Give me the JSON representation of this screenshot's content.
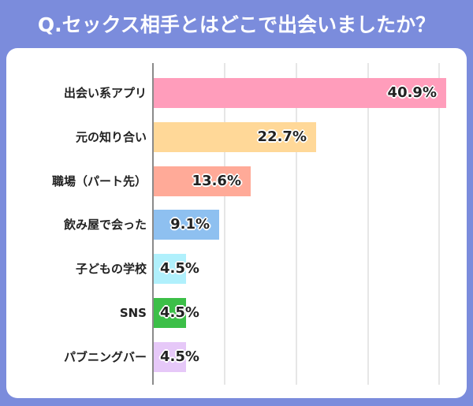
{
  "title": "Q.セックス相手とはどこで出会いましたか？",
  "chart_data": {
    "type": "bar",
    "orientation": "horizontal",
    "title": "Q.セックス相手とはどこで出会いましたか？",
    "xlabel": "",
    "ylabel": "",
    "xlim": [
      0,
      40
    ],
    "grid": true,
    "gridlines_every": 10,
    "categories": [
      "出会い系アプリ",
      "元の知り合い",
      "職場（パート先）",
      "飲み屋で会った",
      "子どもの学校",
      "SNS",
      "パブニングバー"
    ],
    "values": [
      40.9,
      22.7,
      13.6,
      9.1,
      4.5,
      4.5,
      4.5
    ],
    "value_labels": [
      "40.9%",
      "22.7%",
      "13.6%",
      "9.1%",
      "4.5%",
      "4.5%",
      "4.5%"
    ],
    "colors": [
      "#ff9dbb",
      "#ffd898",
      "#ffaa98",
      "#8ec0f0",
      "#b0f0fc",
      "#3cbf48",
      "#e6c8f8"
    ]
  },
  "colors": {
    "background": "#7b8cdc",
    "card": "#ffffff",
    "grid": "#e6e6e6",
    "axis": "#8a8a8a"
  }
}
